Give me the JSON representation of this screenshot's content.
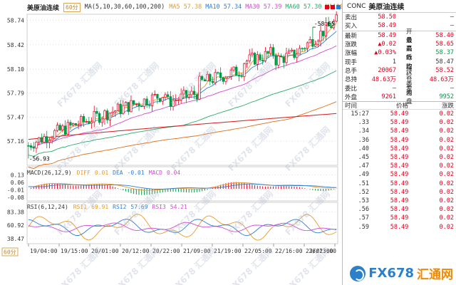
{
  "chart": {
    "symbol": "美原油连续",
    "period": "60分",
    "ma": {
      "label": "MA(5,10,30,60,100,200)",
      "items": [
        {
          "name": "MA5",
          "value": "57.38",
          "color": "#e89a2a"
        },
        {
          "name": "MA10",
          "value": "57.34",
          "color": "#2f7fd1"
        },
        {
          "name": "MA30",
          "value": "57.39",
          "color": "#d14bd1"
        },
        {
          "name": "MA60",
          "value": "57.30",
          "color": "#2aa86a"
        },
        {
          "name": "MA100",
          "value": "57.10",
          "color": "#e0701a"
        },
        {
          "name": "MA200",
          "value": ""
        }
      ]
    },
    "price_axis": [
      "58.74",
      "58.42",
      "58.10",
      "57.79",
      "57.47",
      "57.16"
    ],
    "high_marker": "58.65",
    "low_marker": "56.93",
    "macd": {
      "label": "MACD(26,12,9)",
      "items": [
        {
          "name": "DIFF",
          "value": "0.01",
          "color": "#e89a2a"
        },
        {
          "name": "DEA",
          "value": "-0.01",
          "color": "#2f7fd1"
        },
        {
          "name": "MACD",
          "value": "0.04",
          "color": "#d14bd1"
        }
      ],
      "axis": [
        "0.13",
        "0.06",
        "-0.01",
        "-0.08"
      ]
    },
    "rsi": {
      "label": "RSI(6,12,24)",
      "items": [
        {
          "name": "RSI1",
          "value": "69.91",
          "color": "#e89a2a"
        },
        {
          "name": "RSI2",
          "value": "57.69",
          "color": "#2f7fd1"
        },
        {
          "name": "RSI3",
          "value": "54.21",
          "color": "#d14bd1"
        }
      ],
      "axis": [
        "83.38",
        "60.92",
        "38.47"
      ]
    },
    "time_axis": [
      "19/04:00",
      "19/15:00",
      "20/01:00",
      "20/12:00",
      "20/22:00",
      "21/09:00",
      "21/19:00",
      "22/05:00",
      "22/16:00",
      "23/02:00",
      "26/13:00"
    ],
    "period_button": "60分",
    "colors": {
      "up": "#e0001e",
      "down": "#009944",
      "background": "#ffffff"
    },
    "watermark": "FX678 汇通网"
  },
  "quote": {
    "code": "CONC",
    "name": "美原油连续",
    "rows": [
      {
        "label": "卖出",
        "value": "58.50",
        "color": "r",
        "label2": "",
        "value2": "–"
      },
      {
        "label": "买入",
        "value": "58.49",
        "color": "r",
        "label2": "",
        "value2": "–"
      }
    ],
    "stats": [
      {
        "l1": "最新",
        "v1": "58.49",
        "c1": "r",
        "l2": "开盘",
        "v2": "58.40",
        "c2": "r"
      },
      {
        "l1": "涨跌",
        "v1": "▲0.02",
        "c1": "r",
        "l2": "最高",
        "v2": "58.65",
        "c2": "r"
      },
      {
        "l1": "涨幅",
        "v1": "▲0.03%",
        "c1": "r",
        "l2": "最低",
        "v2": "58.37",
        "c2": "g"
      },
      {
        "l1": "现手",
        "v1": "1",
        "c1": "k",
        "l2": "昨收",
        "v2": "58.47",
        "c2": "k"
      },
      {
        "l1": "总手",
        "v1": "20067",
        "c1": "r",
        "l2": "均价",
        "v2": "58.52",
        "c2": "r"
      },
      {
        "l1": "总持",
        "v1": "48.63万",
        "c1": "r",
        "l2": "持仓差",
        "v2": "48.63万",
        "c2": "r"
      },
      {
        "l1": "委比",
        "v1": "–",
        "c1": "k",
        "l2": "委差",
        "v2": "–",
        "c2": "k"
      },
      {
        "l1": "外盘",
        "v1": "9261",
        "c1": "r",
        "l2": "内盘",
        "v2": "9952",
        "c2": "g"
      }
    ],
    "trade_headers": [
      "时间",
      "价格",
      "涨跌"
    ],
    "trades": [
      {
        "time": "15:27",
        "price": "58.49",
        "change": "0.02"
      },
      {
        "time": ".33",
        "price": "58.49",
        "change": "0.02"
      },
      {
        "time": ".34",
        "price": "58.49",
        "change": "0.02"
      },
      {
        "time": ".36",
        "price": "58.49",
        "change": "0.02"
      },
      {
        "time": ".40",
        "price": "58.49",
        "change": "0.02"
      },
      {
        "time": ".45",
        "price": "58.49",
        "change": "0.02"
      },
      {
        "time": ".47",
        "price": "58.49",
        "change": "0.02"
      },
      {
        "time": ".49",
        "price": "58.49",
        "change": "0.02"
      },
      {
        "time": ".51",
        "price": "58.49",
        "change": "0.02"
      },
      {
        "time": ".52",
        "price": "58.49",
        "change": "0.02"
      },
      {
        "time": ".53",
        "price": "58.49",
        "change": "0.02"
      },
      {
        "time": ".56",
        "price": "58.49",
        "change": "0.02"
      },
      {
        "time": ".57",
        "price": "58.49",
        "change": "0.02"
      },
      {
        "time": ".59",
        "price": "58.49",
        "change": "0.02"
      }
    ],
    "brand": {
      "fx": "FX678",
      "hui": "汇通网"
    }
  }
}
